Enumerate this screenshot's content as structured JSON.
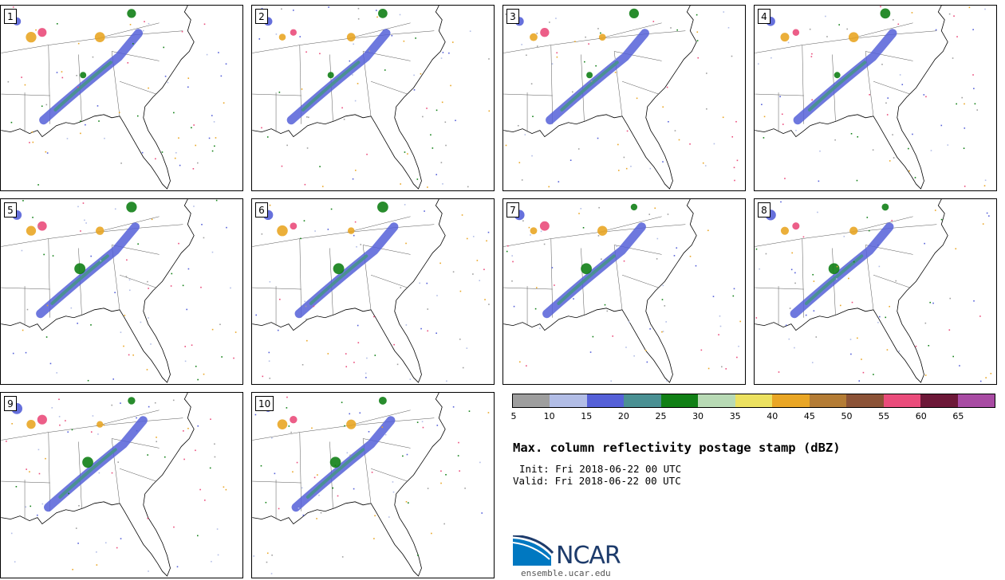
{
  "panels": [
    {
      "label": "1"
    },
    {
      "label": "2"
    },
    {
      "label": "3"
    },
    {
      "label": "4"
    },
    {
      "label": "5"
    },
    {
      "label": "6"
    },
    {
      "label": "7"
    },
    {
      "label": "8"
    },
    {
      "label": "9"
    },
    {
      "label": "10"
    }
  ],
  "colorbar": {
    "unit": "dBZ",
    "ticks": [
      "5",
      "10",
      "15",
      "20",
      "25",
      "30",
      "35",
      "40",
      "45",
      "50",
      "55",
      "60",
      "65"
    ],
    "colors": [
      "#9e9e9e",
      "#b2bde6",
      "#5560d8",
      "#4a9093",
      "#118016",
      "#b8dab5",
      "#ece160",
      "#e9a625",
      "#b47c35",
      "#8c5337",
      "#ea4c7b",
      "#6d1838",
      "#a84ba3"
    ]
  },
  "title": "Max. column reflectivity postage stamp (dBZ)",
  "init": "Init: Fri 2018-06-22 00 UTC",
  "valid": "Valid: Fri 2018-06-22 00 UTC",
  "logo": {
    "name": "NCAR",
    "url": "ensemble.ucar.edu",
    "color": "#1d3b6b",
    "arc_color": "#0078c1"
  }
}
